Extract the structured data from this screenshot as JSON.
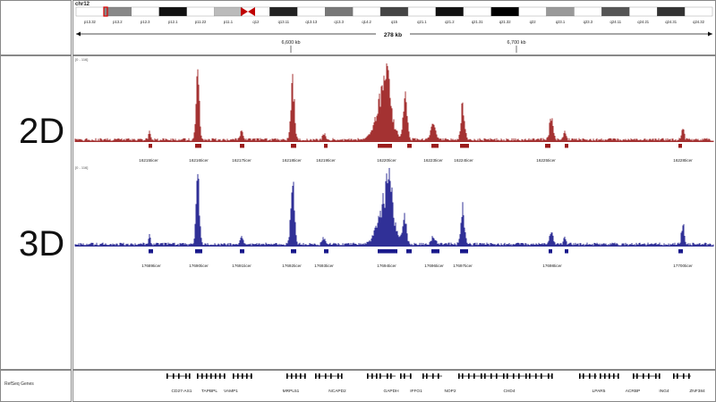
{
  "chromosome": "chr12",
  "ideogram_bands": [
    "p13.32",
    "p13.2",
    "p12.3",
    "p12.1",
    "p11.22",
    "p11.1",
    "q12",
    "q13.11",
    "q13.13",
    "q13.3",
    "q14.2",
    "q15",
    "q21.1",
    "q21.2",
    "q21.31",
    "q21.32",
    "q22",
    "q23.1",
    "q23.3",
    "q24.11",
    "q24.21",
    "q24.31",
    "q24.32"
  ],
  "ruler": {
    "span_label": "278 kb",
    "tick_labels": [
      "6,600 kb",
      "6,700 kb"
    ]
  },
  "tracks": {
    "t2d": {
      "label": "2D",
      "range": "[0 - 116]",
      "color": "#9b1b1b",
      "features": [
        "16215ticer",
        "16216ticer",
        "16217ticer",
        "16218ticer",
        "16219ticer",
        "16220ticer",
        "16223ticer",
        "16224ticer",
        "16225ticer",
        "16228ticer"
      ]
    },
    "t3d": {
      "label": "3D",
      "range": "[0 - 116]",
      "color": "#1a1a8c",
      "features": [
        "17689ticer",
        "17690ticer",
        "17691ticer",
        "17692ticer",
        "17693ticer",
        "17694ticer",
        "17696ticer",
        "17697ticer",
        "17698ticer",
        "17700ticer"
      ]
    }
  },
  "refseq": {
    "label": "RefSeq Genes",
    "genes": [
      "CD27-AS1",
      "TAPBPL",
      "VAMP1",
      "MRPL51",
      "NCAPD2",
      "GAPDH",
      "IFFO1",
      "NOP2",
      "CHD4",
      "LPAR5",
      "ACRBP",
      "ING4",
      "ZNF384"
    ]
  }
}
